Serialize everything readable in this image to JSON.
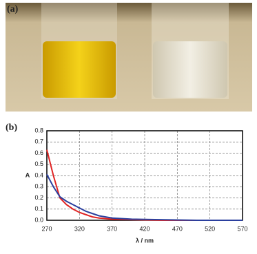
{
  "panels": {
    "a": "(a)",
    "b": "(b)"
  },
  "chart_data": {
    "type": "line",
    "xlabel": "λ / nm",
    "ylabel": "A",
    "x": [
      270,
      280,
      290,
      300,
      310,
      320,
      330,
      340,
      350,
      370,
      400,
      450,
      500,
      570
    ],
    "series": [
      {
        "color": "#e02424",
        "values": [
          0.63,
          0.4,
          0.2,
          0.14,
          0.1,
          0.07,
          0.05,
          0.03,
          0.02,
          0.01,
          0.005,
          0,
          0,
          0
        ]
      },
      {
        "color": "#2a3f9e",
        "values": [
          0.41,
          0.3,
          0.21,
          0.17,
          0.14,
          0.11,
          0.08,
          0.06,
          0.04,
          0.02,
          0.01,
          0.005,
          0,
          0
        ]
      }
    ],
    "xlim": [
      270,
      570
    ],
    "xticks": [
      270,
      320,
      370,
      420,
      470,
      520,
      570
    ],
    "ylim": [
      0,
      0.8
    ],
    "yticks": [
      {
        "value": 0,
        "label": "0.0"
      },
      0.1,
      0.2,
      0.3,
      0.4,
      0.5,
      0.6,
      0.7,
      0.8
    ],
    "grid": true
  }
}
